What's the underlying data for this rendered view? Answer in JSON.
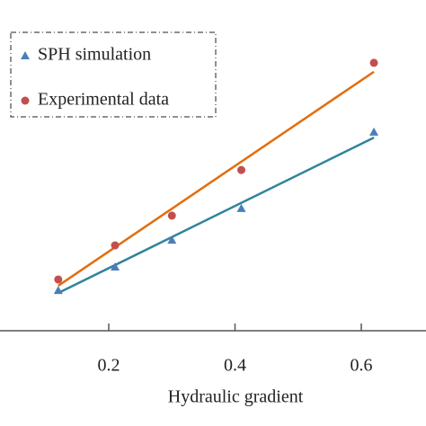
{
  "chart_data": {
    "type": "scatter",
    "xlabel": "Hydraulic gradient",
    "xlim": [
      0,
      0.7
    ],
    "xticks": [
      0.2,
      0.4,
      0.6
    ],
    "ylim": [
      0,
      100
    ],
    "series": [
      {
        "name": "SPH simulation",
        "color": "#4a7ebb",
        "marker": "triangle",
        "x": [
          0.12,
          0.21,
          0.3,
          0.41,
          0.62
        ],
        "values": [
          12.2,
          19.3,
          27.4,
          37.0,
          60.1
        ]
      },
      {
        "name": "Experimental data",
        "color": "#c0504d",
        "marker": "circle",
        "x": [
          0.12,
          0.21,
          0.3,
          0.41,
          0.62
        ],
        "values": [
          15.5,
          25.8,
          34.8,
          48.6,
          81.0
        ]
      }
    ],
    "trendlines": [
      {
        "color": "#31849b",
        "x": [
          0.12,
          0.62
        ],
        "values": [
          11.4,
          58.4
        ]
      },
      {
        "color": "#e46c0a",
        "x": [
          0.12,
          0.62
        ],
        "values": [
          13.6,
          78.3
        ]
      }
    ]
  }
}
